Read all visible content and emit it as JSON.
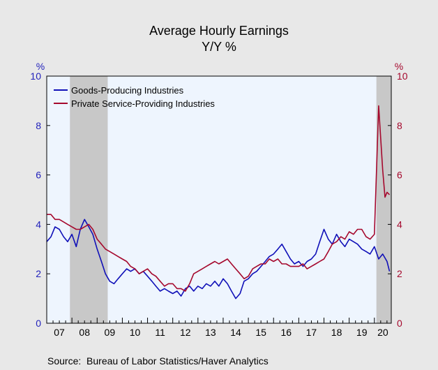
{
  "chart_data": {
    "type": "line",
    "title": "Average Hourly Earnings",
    "subtitle": "Y/Y %",
    "ylabel_left": "%",
    "ylabel_right": "%",
    "ylim": [
      0,
      10
    ],
    "yticks": [
      0,
      2,
      4,
      6,
      8,
      10
    ],
    "xlim": [
      2007.0,
      2020.67
    ],
    "xtick_labels": [
      "07",
      "08",
      "09",
      "10",
      "11",
      "12",
      "13",
      "14",
      "15",
      "16",
      "17",
      "18",
      "19",
      "20"
    ],
    "recessions": [
      [
        2007.92,
        2009.42
      ],
      [
        2020.08,
        2020.67
      ]
    ],
    "legend_position": "top-left",
    "grid": false,
    "colors": {
      "goods": "#1010b8",
      "services": "#a5082d",
      "left_axis": "#2222bb",
      "right_axis": "#a5082d",
      "plot_bg": "#eef5fe",
      "recession": "#c8c8c8"
    },
    "series": [
      {
        "name": "Goods-Producing Industries",
        "x": [
          2007.0,
          2007.17,
          2007.33,
          2007.5,
          2007.67,
          2007.83,
          2008.0,
          2008.17,
          2008.33,
          2008.5,
          2008.67,
          2008.83,
          2009.0,
          2009.17,
          2009.33,
          2009.5,
          2009.67,
          2009.83,
          2010.0,
          2010.17,
          2010.33,
          2010.5,
          2010.67,
          2010.83,
          2011.0,
          2011.17,
          2011.33,
          2011.5,
          2011.67,
          2011.83,
          2012.0,
          2012.17,
          2012.33,
          2012.5,
          2012.67,
          2012.83,
          2013.0,
          2013.17,
          2013.33,
          2013.5,
          2013.67,
          2013.83,
          2014.0,
          2014.17,
          2014.33,
          2014.5,
          2014.67,
          2014.83,
          2015.0,
          2015.17,
          2015.33,
          2015.5,
          2015.67,
          2015.83,
          2016.0,
          2016.17,
          2016.33,
          2016.5,
          2016.67,
          2016.83,
          2017.0,
          2017.17,
          2017.33,
          2017.5,
          2017.67,
          2017.83,
          2018.0,
          2018.17,
          2018.33,
          2018.5,
          2018.67,
          2018.83,
          2019.0,
          2019.17,
          2019.33,
          2019.5,
          2019.67,
          2019.83,
          2020.0,
          2020.17,
          2020.33,
          2020.5,
          2020.6
        ],
        "values": [
          3.3,
          3.5,
          3.9,
          3.8,
          3.5,
          3.3,
          3.6,
          3.1,
          3.8,
          4.2,
          3.9,
          3.6,
          3.0,
          2.5,
          2.0,
          1.7,
          1.6,
          1.8,
          2.0,
          2.2,
          2.1,
          2.2,
          2.0,
          2.1,
          1.9,
          1.7,
          1.5,
          1.3,
          1.4,
          1.3,
          1.2,
          1.3,
          1.1,
          1.4,
          1.5,
          1.3,
          1.5,
          1.4,
          1.6,
          1.5,
          1.7,
          1.5,
          1.8,
          1.6,
          1.3,
          1.0,
          1.2,
          1.7,
          1.8,
          2.0,
          2.1,
          2.3,
          2.5,
          2.7,
          2.8,
          3.0,
          3.2,
          2.9,
          2.6,
          2.4,
          2.5,
          2.3,
          2.5,
          2.6,
          2.8,
          3.3,
          3.8,
          3.4,
          3.2,
          3.6,
          3.3,
          3.1,
          3.4,
          3.3,
          3.2,
          3.0,
          2.9,
          2.8,
          3.1,
          2.6,
          2.8,
          2.5,
          2.1
        ]
      },
      {
        "name": "Private Service-Providing Industries",
        "x": [
          2007.0,
          2007.17,
          2007.33,
          2007.5,
          2007.67,
          2007.83,
          2008.0,
          2008.17,
          2008.33,
          2008.5,
          2008.67,
          2008.83,
          2009.0,
          2009.17,
          2009.33,
          2009.5,
          2009.67,
          2009.83,
          2010.0,
          2010.17,
          2010.33,
          2010.5,
          2010.67,
          2010.83,
          2011.0,
          2011.17,
          2011.33,
          2011.5,
          2011.67,
          2011.83,
          2012.0,
          2012.17,
          2012.33,
          2012.5,
          2012.67,
          2012.83,
          2013.0,
          2013.17,
          2013.33,
          2013.5,
          2013.67,
          2013.83,
          2014.0,
          2014.17,
          2014.33,
          2014.5,
          2014.67,
          2014.83,
          2015.0,
          2015.17,
          2015.33,
          2015.5,
          2015.67,
          2015.83,
          2016.0,
          2016.17,
          2016.33,
          2016.5,
          2016.67,
          2016.83,
          2017.0,
          2017.17,
          2017.33,
          2017.5,
          2017.67,
          2017.83,
          2018.0,
          2018.17,
          2018.33,
          2018.5,
          2018.67,
          2018.83,
          2019.0,
          2019.17,
          2019.33,
          2019.5,
          2019.67,
          2019.83,
          2020.0,
          2020.17,
          2020.25,
          2020.33,
          2020.42,
          2020.5,
          2020.6
        ],
        "values": [
          4.4,
          4.4,
          4.2,
          4.2,
          4.1,
          4.0,
          3.9,
          3.8,
          3.8,
          3.9,
          4.0,
          3.8,
          3.4,
          3.2,
          3.0,
          2.9,
          2.8,
          2.7,
          2.6,
          2.5,
          2.3,
          2.2,
          2.0,
          2.1,
          2.2,
          2.0,
          1.9,
          1.7,
          1.5,
          1.6,
          1.6,
          1.4,
          1.4,
          1.3,
          1.6,
          2.0,
          2.1,
          2.2,
          2.3,
          2.4,
          2.5,
          2.4,
          2.5,
          2.6,
          2.4,
          2.2,
          2.0,
          1.8,
          1.9,
          2.2,
          2.3,
          2.4,
          2.4,
          2.6,
          2.5,
          2.6,
          2.4,
          2.4,
          2.3,
          2.3,
          2.3,
          2.4,
          2.2,
          2.3,
          2.4,
          2.5,
          2.6,
          2.9,
          3.2,
          3.3,
          3.5,
          3.4,
          3.7,
          3.6,
          3.8,
          3.8,
          3.5,
          3.4,
          3.6,
          8.8,
          7.5,
          6.2,
          5.1,
          5.3,
          5.2
        ]
      }
    ]
  },
  "source": "Source:  Bureau of Labor Statistics/Haver Analytics"
}
